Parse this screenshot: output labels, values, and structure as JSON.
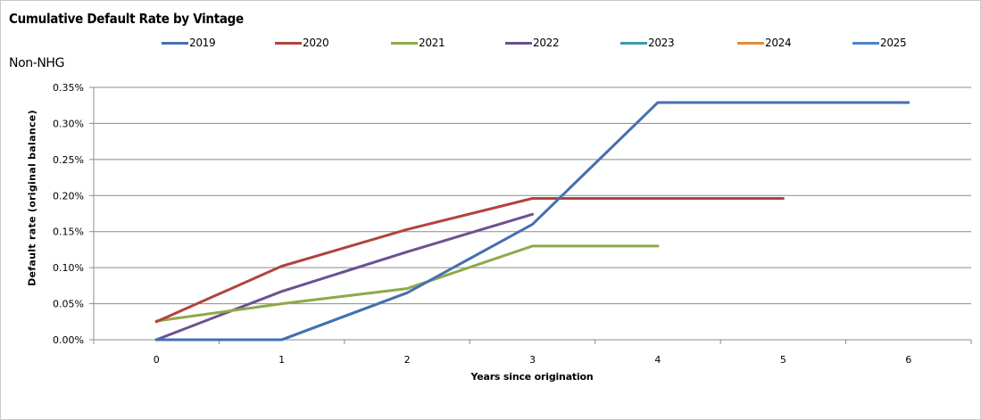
{
  "chart_data": {
    "type": "line",
    "title": "Cumulative Default Rate by Vintage",
    "subtitle": "Non-NHG",
    "xlabel": "Years since origination",
    "ylabel": "Default rate (original balance)",
    "x": [
      0,
      1,
      2,
      3,
      4,
      5,
      6
    ],
    "x_tick_labels": [
      "0",
      "1",
      "2",
      "3",
      "4",
      "5",
      "6"
    ],
    "ylim": [
      0,
      0.35
    ],
    "y_tick_labels": [
      "0.00%",
      "0.05%",
      "0.10%",
      "0.15%",
      "0.20%",
      "0.25%",
      "0.30%",
      "0.35%"
    ],
    "y_ticks": [
      0,
      0.05,
      0.1,
      0.15,
      0.2,
      0.25,
      0.3,
      0.35
    ],
    "grid": "horizontal",
    "legend_position": "top",
    "series": [
      {
        "name": "2019",
        "color": "#4470b0",
        "values": [
          0.0,
          0.0,
          0.065,
          0.16,
          0.329,
          0.329,
          0.329
        ]
      },
      {
        "name": "2020",
        "color": "#b0443f",
        "values": [
          0.025,
          0.102,
          0.153,
          0.196,
          0.196,
          0.196,
          null
        ]
      },
      {
        "name": "2021",
        "color": "#8ea94a",
        "values": [
          0.026,
          0.05,
          0.071,
          0.13,
          0.13,
          null,
          null
        ]
      },
      {
        "name": "2022",
        "color": "#6c5190",
        "values": [
          0.0,
          0.067,
          0.122,
          0.174,
          null,
          null,
          null
        ]
      },
      {
        "name": "2023",
        "color": "#3a9bae",
        "values": [
          0.0,
          0.0,
          0.065,
          null,
          null,
          null,
          null
        ]
      },
      {
        "name": "2024",
        "color": "#e38a3a",
        "values": [
          0.0,
          0.0,
          null,
          null,
          null,
          null,
          null
        ]
      },
      {
        "name": "2025",
        "color": "#4a86c5",
        "values": [
          null,
          null,
          null,
          null,
          null,
          null,
          null
        ]
      }
    ]
  }
}
